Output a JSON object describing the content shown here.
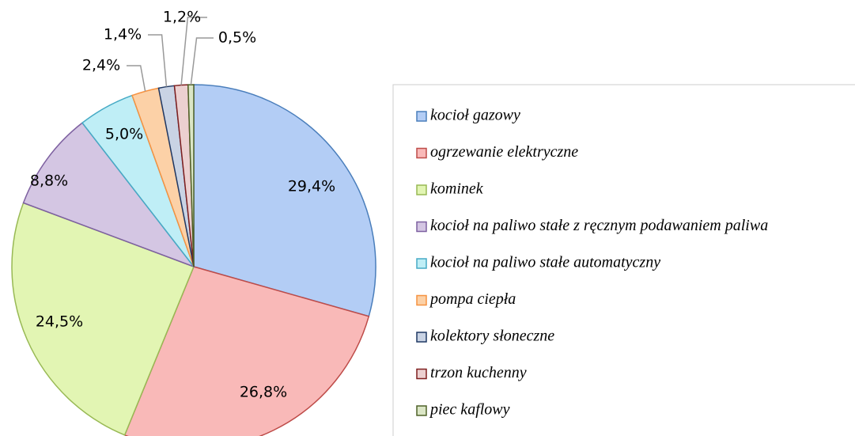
{
  "chart_data": {
    "type": "pie",
    "categories": [
      "kocioł gazowy",
      "ogrzewanie elektryczne",
      "kominek",
      "kocioł na paliwo stałe z ręcznym podawaniem paliwa",
      "kocioł na paliwo stałe automatyczny",
      "pompa ciepła",
      "kolektory słoneczne",
      "trzon kuchenny",
      "piec kaflowy"
    ],
    "values": [
      29.4,
      26.8,
      24.5,
      8.8,
      5.0,
      2.4,
      1.4,
      1.2,
      0.5
    ],
    "value_labels": [
      "29,4%",
      "26,8%",
      "24,5%",
      "8,8%",
      "5,0%",
      "2,4%",
      "1,4%",
      "1,2%",
      "0,5%"
    ],
    "colors": [
      "#b3cdf5",
      "#f9b9b8",
      "#e2f5b3",
      "#d4c6e3",
      "#bfeef6",
      "#fcd1a7",
      "#c9d3e4",
      "#ecd0d0",
      "#dbe6c6"
    ],
    "edge_colors": [
      "#4a7ebb",
      "#be4b48",
      "#98b954",
      "#7d60a0",
      "#46aac5",
      "#f69240",
      "#1f3864",
      "#7f1f1f",
      "#4f6228"
    ],
    "legend": "right"
  }
}
